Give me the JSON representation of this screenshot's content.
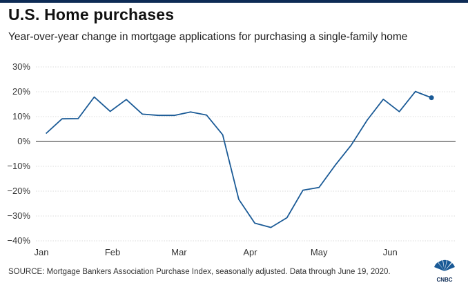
{
  "header": {
    "title": "U.S. Home purchases",
    "subtitle": "Year-over-year change in mortgage applications for purchasing a single-family home"
  },
  "footer": {
    "source": "SOURCE: Mortgage Bankers Association Purchase Index, seasonally adjusted. Data through June 19, 2020.",
    "logo_text": "CNBC"
  },
  "colors": {
    "line": "#1a5a96",
    "grid": "#d0d0d0",
    "zero_line": "#555555",
    "top_bar": "#0d2b55"
  },
  "chart_data": {
    "type": "line",
    "title": "U.S. Home purchases",
    "subtitle": "Year-over-year change in mortgage applications for purchasing a single-family home",
    "x_tick_labels": [
      "Jan",
      "Feb",
      "Mar",
      "Apr",
      "May",
      "Jun"
    ],
    "y_tick_labels": [
      "30%",
      "20%",
      "10%",
      "0%",
      "−10%",
      "−20%",
      "−30%",
      "−40%"
    ],
    "y_ticks": [
      30,
      20,
      10,
      0,
      -10,
      -20,
      -30,
      -40
    ],
    "ylim": [
      -40,
      30
    ],
    "xlim": [
      "2020-01-01",
      "2020-06-28"
    ],
    "grid": true,
    "end_marker": true,
    "series": [
      {
        "x": [
          "2020-01-03",
          "2020-01-10",
          "2020-01-17",
          "2020-01-24",
          "2020-01-31",
          "2020-02-07",
          "2020-02-14",
          "2020-02-21",
          "2020-02-28",
          "2020-03-06",
          "2020-03-13",
          "2020-03-20",
          "2020-03-27",
          "2020-04-03",
          "2020-04-10",
          "2020-04-17",
          "2020-04-24",
          "2020-05-01",
          "2020-05-08",
          "2020-05-15",
          "2020-05-22",
          "2020-05-29",
          "2020-06-05",
          "2020-06-12",
          "2020-06-19"
        ],
        "y": [
          3.2,
          9.1,
          9.2,
          17.9,
          12.1,
          16.9,
          11.0,
          10.5,
          10.5,
          11.9,
          10.6,
          2.7,
          -23.3,
          -32.9,
          -34.6,
          -30.7,
          -19.6,
          -18.5,
          -9.6,
          -1.5,
          8.6,
          17.0,
          12.0,
          20.1,
          17.6
        ]
      }
    ]
  }
}
